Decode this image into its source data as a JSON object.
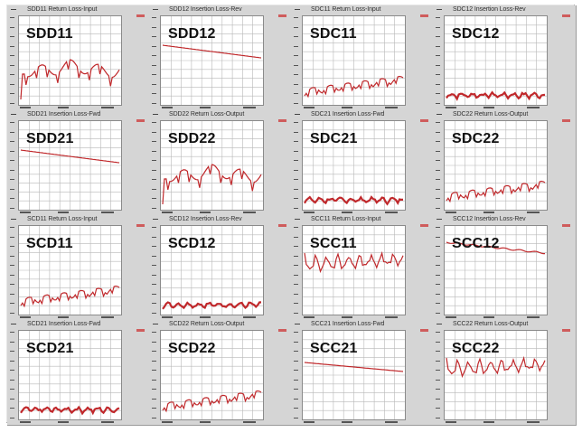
{
  "panels": [
    {
      "id": "sdd11",
      "label": "SDD11",
      "title": "SDD11 Return Loss-Input",
      "kind": "ripple"
    },
    {
      "id": "sdd12",
      "label": "SDD12",
      "title": "SDD12 Insertion Loss-Rev",
      "kind": "decay"
    },
    {
      "id": "sdc11",
      "label": "SDC11",
      "title": "SDC11 Return Loss-Input",
      "kind": "low-rise"
    },
    {
      "id": "sdc12",
      "label": "SDC12",
      "title": "SDC12 Insertion Loss-Rev",
      "kind": "floor"
    },
    {
      "id": "sdd21",
      "label": "SDD21",
      "title": "SDD21 Insertion Loss-Fwd",
      "kind": "decay"
    },
    {
      "id": "sdd22",
      "label": "SDD22",
      "title": "SDD22 Return Loss-Output",
      "kind": "ripple"
    },
    {
      "id": "sdc21",
      "label": "SDC21",
      "title": "SDC21 Insertion Loss-Fwd",
      "kind": "floor"
    },
    {
      "id": "sdc22",
      "label": "SDC22",
      "title": "SDC22 Return Loss-Output",
      "kind": "low-rise"
    },
    {
      "id": "scd11",
      "label": "SCD11",
      "title": "SCD11 Return Loss-Input",
      "kind": "low-rise"
    },
    {
      "id": "scd12",
      "label": "SCD12",
      "title": "SCD12 Insertion Loss-Rev",
      "kind": "floor"
    },
    {
      "id": "scc11",
      "label": "SCC11",
      "title": "SCC11 Return Loss-Input",
      "kind": "high-ripple"
    },
    {
      "id": "scc12",
      "label": "SCC12",
      "title": "SCC12 Insertion Loss-Rev",
      "kind": "decay-high"
    },
    {
      "id": "scd21",
      "label": "SCD21",
      "title": "SCD21 Insertion Loss-Fwd",
      "kind": "floor"
    },
    {
      "id": "scd22",
      "label": "SCD22",
      "title": "SCD22 Return Loss-Output",
      "kind": "low-rise"
    },
    {
      "id": "scc21",
      "label": "SCC21",
      "title": "SCC21 Insertion Loss-Fwd",
      "kind": "decay-mid"
    },
    {
      "id": "scc22",
      "label": "SCC22",
      "title": "SCC22 Return Loss-Output",
      "kind": "high-ripple"
    }
  ],
  "colors": {
    "trace": "#c0282b",
    "grid": "#b8b8b8",
    "panel_bg": "#d5d5d5",
    "frame_bg": "#b9b9b9"
  }
}
